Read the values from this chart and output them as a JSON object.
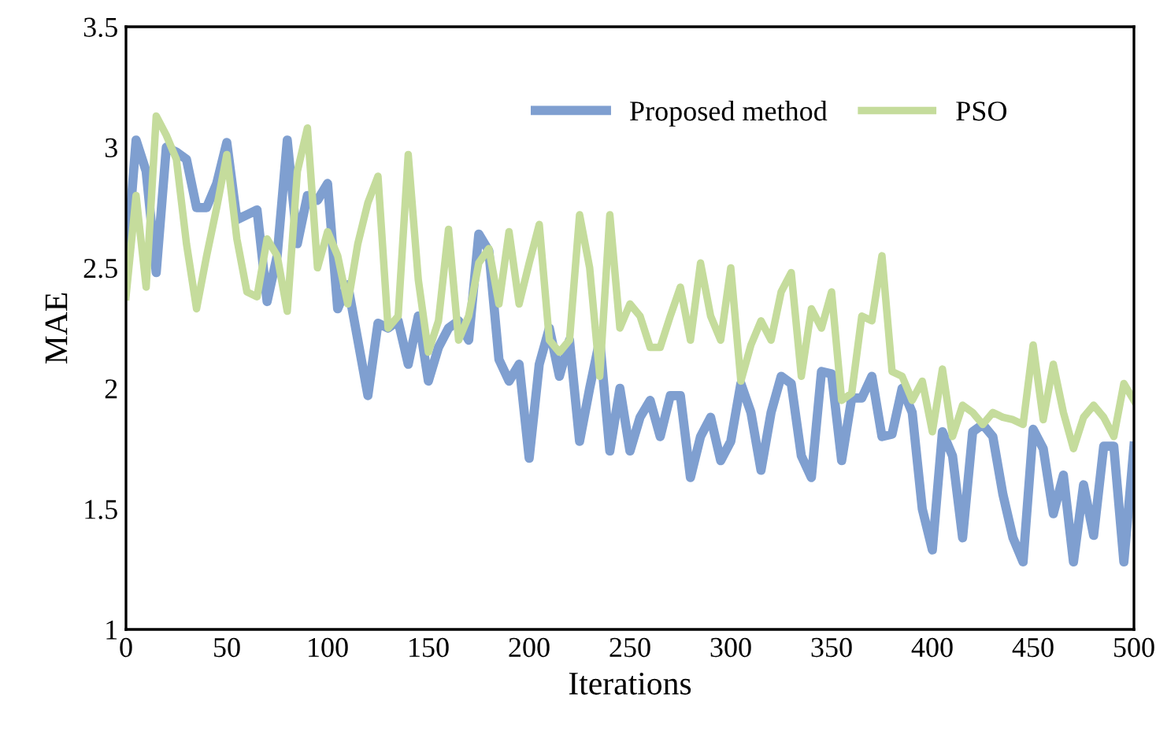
{
  "chart_data": {
    "type": "line",
    "xlabel": "Iterations",
    "ylabel": "MAE",
    "x": [
      0,
      5,
      10,
      15,
      20,
      25,
      30,
      35,
      40,
      45,
      50,
      55,
      60,
      65,
      70,
      75,
      80,
      85,
      90,
      95,
      100,
      105,
      110,
      115,
      120,
      125,
      130,
      135,
      140,
      145,
      150,
      155,
      160,
      165,
      170,
      175,
      180,
      185,
      190,
      195,
      200,
      205,
      210,
      215,
      220,
      225,
      230,
      235,
      240,
      245,
      250,
      255,
      260,
      265,
      270,
      275,
      280,
      285,
      290,
      295,
      300,
      305,
      310,
      315,
      320,
      325,
      330,
      335,
      340,
      345,
      350,
      355,
      360,
      365,
      370,
      375,
      380,
      385,
      390,
      395,
      400,
      405,
      410,
      415,
      420,
      425,
      430,
      435,
      440,
      445,
      450,
      455,
      460,
      465,
      470,
      475,
      480,
      485,
      490,
      495,
      500
    ],
    "series": [
      {
        "name": "Proposed method",
        "color": "#7f9fd0",
        "values": [
          2.5,
          3.03,
          2.9,
          2.48,
          3.0,
          2.98,
          2.95,
          2.75,
          2.75,
          2.85,
          3.02,
          2.7,
          2.72,
          2.74,
          2.36,
          2.55,
          3.03,
          2.6,
          2.8,
          2.78,
          2.85,
          2.33,
          2.43,
          2.2,
          1.97,
          2.27,
          2.25,
          2.28,
          2.1,
          2.3,
          2.03,
          2.17,
          2.25,
          2.28,
          2.2,
          2.64,
          2.57,
          2.12,
          2.03,
          2.1,
          1.71,
          2.1,
          2.25,
          2.05,
          2.2,
          1.78,
          2.0,
          2.2,
          1.74,
          2.0,
          1.74,
          1.88,
          1.95,
          1.8,
          1.97,
          1.97,
          1.63,
          1.8,
          1.88,
          1.7,
          1.78,
          2.02,
          1.9,
          1.66,
          1.9,
          2.05,
          2.02,
          1.72,
          1.63,
          2.07,
          2.06,
          1.7,
          1.96,
          1.96,
          2.05,
          1.8,
          1.81,
          2.0,
          1.9,
          1.5,
          1.33,
          1.82,
          1.72,
          1.38,
          1.82,
          1.85,
          1.8,
          1.56,
          1.38,
          1.28,
          1.83,
          1.75,
          1.48,
          1.64,
          1.28,
          1.6,
          1.39,
          1.76,
          1.76,
          1.28,
          1.76
        ]
      },
      {
        "name": "PSO",
        "color": "#c5dc9c",
        "values": [
          2.38,
          2.8,
          2.42,
          3.13,
          3.05,
          2.95,
          2.6,
          2.33,
          2.55,
          2.75,
          2.97,
          2.62,
          2.4,
          2.38,
          2.62,
          2.55,
          2.32,
          2.9,
          3.08,
          2.5,
          2.65,
          2.55,
          2.35,
          2.6,
          2.77,
          2.88,
          2.25,
          2.3,
          2.97,
          2.45,
          2.15,
          2.28,
          2.66,
          2.2,
          2.3,
          2.52,
          2.58,
          2.35,
          2.65,
          2.35,
          2.52,
          2.68,
          2.2,
          2.15,
          2.2,
          2.72,
          2.5,
          2.05,
          2.72,
          2.25,
          2.35,
          2.3,
          2.17,
          2.17,
          2.3,
          2.42,
          2.2,
          2.52,
          2.3,
          2.2,
          2.5,
          2.03,
          2.18,
          2.28,
          2.2,
          2.4,
          2.48,
          2.05,
          2.33,
          2.25,
          2.4,
          1.95,
          1.98,
          2.3,
          2.28,
          2.55,
          2.07,
          2.05,
          1.95,
          2.03,
          1.82,
          2.08,
          1.8,
          1.93,
          1.9,
          1.85,
          1.9,
          1.88,
          1.87,
          1.85,
          2.18,
          1.87,
          2.1,
          1.9,
          1.75,
          1.88,
          1.93,
          1.88,
          1.8,
          2.02,
          1.95
        ]
      }
    ],
    "xlim": [
      0,
      500
    ],
    "xticks": [
      0,
      50,
      100,
      150,
      200,
      250,
      300,
      350,
      400,
      450,
      500
    ],
    "ylim": [
      1,
      3.5
    ],
    "yticks": [
      1,
      1.5,
      2,
      2.5,
      3,
      3.5
    ],
    "grid": false,
    "legend": "top right",
    "marker": "none",
    "line_style": "solid"
  }
}
